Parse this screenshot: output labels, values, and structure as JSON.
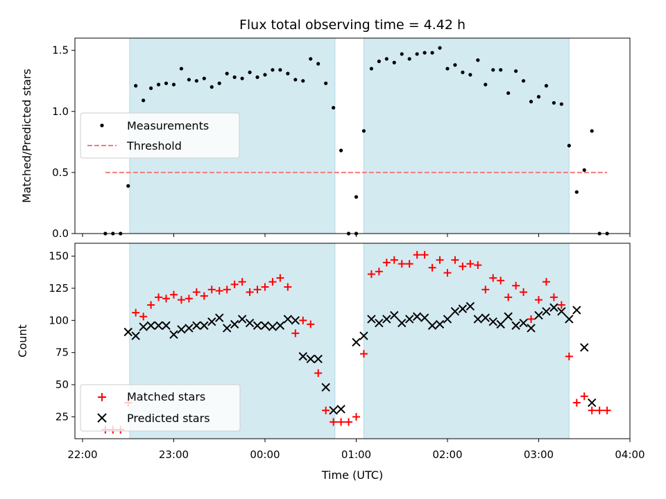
{
  "chart_data": [
    {
      "type": "scatter",
      "title": "Flux total observing time = 4.42 h",
      "ylabel": "Matched/Predicted stars",
      "xlabel": "",
      "xlim": [
        "21:55",
        "04:00"
      ],
      "ylim": [
        0,
        1.6
      ],
      "yticks": [
        "0.0",
        "0.5",
        "1.0",
        "1.5"
      ],
      "shaded_periods": [
        [
          "22:31",
          "00:46"
        ],
        [
          "01:05",
          "03:20"
        ]
      ],
      "shade_color": "#d4eaf1",
      "threshold": {
        "name": "Threshold",
        "value": 0.5,
        "x_range": [
          "22:15",
          "03:45"
        ],
        "color": "#f27b7b"
      },
      "series": [
        {
          "name": "Measurements",
          "color": "#000000",
          "points": [
            [
              "22:15",
              0
            ],
            [
              "22:20",
              0
            ],
            [
              "22:25",
              0
            ],
            [
              "22:30",
              0.39
            ],
            [
              "22:35",
              1.21
            ],
            [
              "22:40",
              1.09
            ],
            [
              "22:45",
              1.19
            ],
            [
              "22:50",
              1.22
            ],
            [
              "22:55",
              1.23
            ],
            [
              "23:00",
              1.22
            ],
            [
              "23:05",
              1.35
            ],
            [
              "23:10",
              1.26
            ],
            [
              "23:15",
              1.25
            ],
            [
              "23:20",
              1.27
            ],
            [
              "23:25",
              1.2
            ],
            [
              "23:30",
              1.23
            ],
            [
              "23:35",
              1.31
            ],
            [
              "23:40",
              1.28
            ],
            [
              "23:45",
              1.27
            ],
            [
              "23:50",
              1.32
            ],
            [
              "23:55",
              1.28
            ],
            [
              "00:00",
              1.3
            ],
            [
              "00:05",
              1.34
            ],
            [
              "00:10",
              1.34
            ],
            [
              "00:15",
              1.31
            ],
            [
              "00:20",
              1.26
            ],
            [
              "00:25",
              1.25
            ],
            [
              "00:30",
              1.43
            ],
            [
              "00:35",
              1.39
            ],
            [
              "00:40",
              1.23
            ],
            [
              "00:45",
              1.03
            ],
            [
              "00:50",
              0.68
            ],
            [
              "00:55",
              0
            ],
            [
              "01:00",
              0
            ],
            [
              "01:00",
              0.3
            ],
            [
              "01:05",
              0.84
            ],
            [
              "01:10",
              1.35
            ],
            [
              "01:15",
              1.41
            ],
            [
              "01:20",
              1.43
            ],
            [
              "01:25",
              1.4
            ],
            [
              "01:30",
              1.47
            ],
            [
              "01:35",
              1.43
            ],
            [
              "01:40",
              1.47
            ],
            [
              "01:45",
              1.48
            ],
            [
              "01:50",
              1.48
            ],
            [
              "01:55",
              1.52
            ],
            [
              "02:00",
              1.35
            ],
            [
              "02:05",
              1.38
            ],
            [
              "02:10",
              1.32
            ],
            [
              "02:15",
              1.3
            ],
            [
              "02:20",
              1.42
            ],
            [
              "02:25",
              1.22
            ],
            [
              "02:30",
              1.34
            ],
            [
              "02:35",
              1.34
            ],
            [
              "02:40",
              1.15
            ],
            [
              "02:45",
              1.33
            ],
            [
              "02:50",
              1.25
            ],
            [
              "02:55",
              1.08
            ],
            [
              "03:00",
              1.12
            ],
            [
              "03:05",
              1.21
            ],
            [
              "03:10",
              1.07
            ],
            [
              "03:15",
              1.06
            ],
            [
              "03:20",
              0.72
            ],
            [
              "03:25",
              0.34
            ],
            [
              "03:30",
              0.52
            ],
            [
              "03:35",
              0.84
            ],
            [
              "03:40",
              0
            ],
            [
              "03:45",
              0
            ]
          ]
        }
      ],
      "legend": {
        "location": "center-left",
        "entries": [
          "Measurements",
          "Threshold"
        ]
      }
    },
    {
      "type": "scatter",
      "title": "",
      "ylabel": "Count",
      "xlabel": "Time (UTC)",
      "xlim": [
        "21:55",
        "04:00"
      ],
      "ylim": [
        8,
        160
      ],
      "xticks": [
        "22:00",
        "23:00",
        "00:00",
        "01:00",
        "02:00",
        "03:00",
        "04:00"
      ],
      "yticks": [
        "25",
        "50",
        "75",
        "100",
        "125",
        "150"
      ],
      "shaded_periods": [
        [
          "22:31",
          "00:46"
        ],
        [
          "01:05",
          "03:20"
        ]
      ],
      "shade_color": "#d4eaf1",
      "series": [
        {
          "name": "Matched stars",
          "marker": "plus",
          "color": "#ff0000",
          "points": [
            [
              "22:15",
              15
            ],
            [
              "22:20",
              15
            ],
            [
              "22:25",
              15
            ],
            [
              "22:30",
              36
            ],
            [
              "22:35",
              106
            ],
            [
              "22:40",
              103
            ],
            [
              "22:45",
              112
            ],
            [
              "22:50",
              118
            ],
            [
              "22:55",
              117
            ],
            [
              "23:00",
              120
            ],
            [
              "23:05",
              116
            ],
            [
              "23:10",
              117
            ],
            [
              "23:15",
              122
            ],
            [
              "23:20",
              119
            ],
            [
              "23:25",
              124
            ],
            [
              "23:30",
              123
            ],
            [
              "23:35",
              124
            ],
            [
              "23:40",
              128
            ],
            [
              "23:45",
              130
            ],
            [
              "23:50",
              122
            ],
            [
              "23:55",
              124
            ],
            [
              "00:00",
              126
            ],
            [
              "00:05",
              130
            ],
            [
              "00:10",
              133
            ],
            [
              "00:15",
              126
            ],
            [
              "00:20",
              90
            ],
            [
              "00:25",
              100
            ],
            [
              "00:30",
              97
            ],
            [
              "00:35",
              59
            ],
            [
              "00:40",
              30
            ],
            [
              "00:45",
              21
            ],
            [
              "00:50",
              21
            ],
            [
              "00:55",
              21
            ],
            [
              "01:00",
              25
            ],
            [
              "01:05",
              74
            ],
            [
              "01:10",
              136
            ],
            [
              "01:15",
              138
            ],
            [
              "01:20",
              145
            ],
            [
              "01:25",
              147
            ],
            [
              "01:30",
              144
            ],
            [
              "01:35",
              144
            ],
            [
              "01:40",
              151
            ],
            [
              "01:45",
              151
            ],
            [
              "01:50",
              141
            ],
            [
              "01:55",
              147
            ],
            [
              "02:00",
              137
            ],
            [
              "02:05",
              147
            ],
            [
              "02:10",
              142
            ],
            [
              "02:15",
              144
            ],
            [
              "02:20",
              143
            ],
            [
              "02:25",
              124
            ],
            [
              "02:30",
              133
            ],
            [
              "02:35",
              131
            ],
            [
              "02:40",
              118
            ],
            [
              "02:45",
              127
            ],
            [
              "02:50",
              122
            ],
            [
              "02:55",
              101
            ],
            [
              "03:00",
              116
            ],
            [
              "03:05",
              130
            ],
            [
              "03:10",
              118
            ],
            [
              "03:15",
              112
            ],
            [
              "03:20",
              72
            ],
            [
              "03:25",
              36
            ],
            [
              "03:30",
              41
            ],
            [
              "03:35",
              30
            ],
            [
              "03:40",
              30
            ],
            [
              "03:45",
              30
            ]
          ]
        },
        {
          "name": "Predicted stars",
          "marker": "x",
          "color": "#000000",
          "points": [
            [
              "22:30",
              91
            ],
            [
              "22:35",
              88
            ],
            [
              "22:40",
              95
            ],
            [
              "22:45",
              96
            ],
            [
              "22:50",
              96
            ],
            [
              "22:55",
              96
            ],
            [
              "23:00",
              89
            ],
            [
              "23:05",
              93
            ],
            [
              "23:10",
              94
            ],
            [
              "23:15",
              96
            ],
            [
              "23:20",
              96
            ],
            [
              "23:25",
              99
            ],
            [
              "23:30",
              102
            ],
            [
              "23:35",
              94
            ],
            [
              "23:40",
              97
            ],
            [
              "23:45",
              101
            ],
            [
              "23:50",
              98
            ],
            [
              "23:55",
              96
            ],
            [
              "00:00",
              96
            ],
            [
              "00:05",
              95
            ],
            [
              "00:10",
              96
            ],
            [
              "00:15",
              101
            ],
            [
              "00:20",
              100
            ],
            [
              "00:25",
              72
            ],
            [
              "00:30",
              70
            ],
            [
              "00:35",
              70
            ],
            [
              "00:40",
              48
            ],
            [
              "00:45",
              30
            ],
            [
              "00:50",
              31
            ],
            [
              "01:00",
              83
            ],
            [
              "01:05",
              88
            ],
            [
              "01:10",
              101
            ],
            [
              "01:15",
              98
            ],
            [
              "01:20",
              101
            ],
            [
              "01:25",
              104
            ],
            [
              "01:30",
              98
            ],
            [
              "01:35",
              101
            ],
            [
              "01:40",
              103
            ],
            [
              "01:45",
              102
            ],
            [
              "01:50",
              96
            ],
            [
              "01:55",
              97
            ],
            [
              "02:00",
              101
            ],
            [
              "02:05",
              107
            ],
            [
              "02:10",
              109
            ],
            [
              "02:15",
              111
            ],
            [
              "02:20",
              101
            ],
            [
              "02:25",
              102
            ],
            [
              "02:30",
              99
            ],
            [
              "02:35",
              97
            ],
            [
              "02:40",
              103
            ],
            [
              "02:45",
              96
            ],
            [
              "02:50",
              98
            ],
            [
              "02:55",
              94
            ],
            [
              "03:00",
              104
            ],
            [
              "03:05",
              107
            ],
            [
              "03:10",
              110
            ],
            [
              "03:15",
              107
            ],
            [
              "03:20",
              101
            ],
            [
              "03:25",
              108
            ],
            [
              "03:30",
              79
            ],
            [
              "03:35",
              36
            ]
          ]
        }
      ],
      "legend": {
        "location": "lower-left",
        "entries": [
          "Matched stars",
          "Predicted stars"
        ]
      }
    }
  ]
}
